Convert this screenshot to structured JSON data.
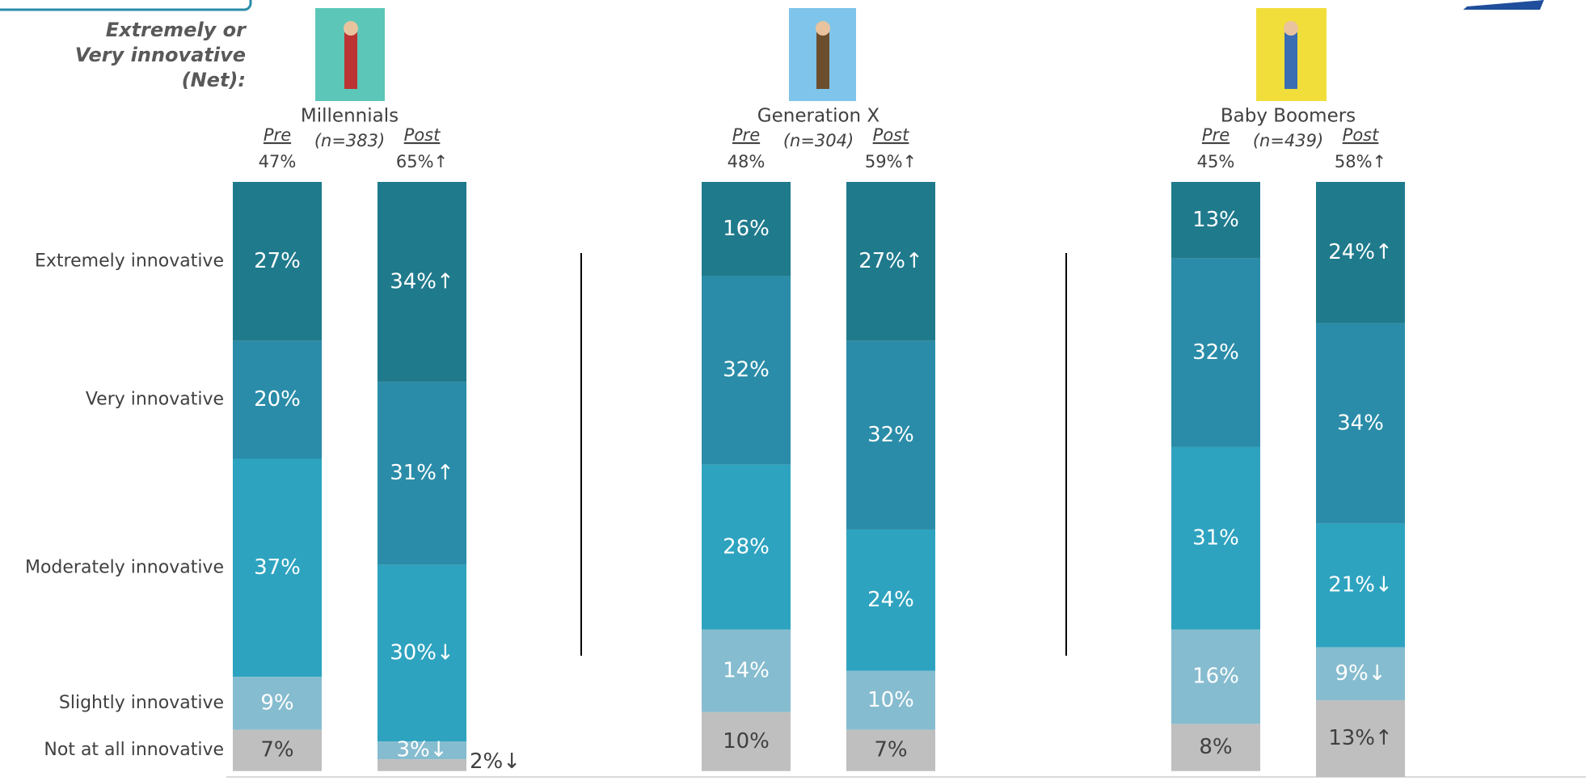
{
  "chart_data": {
    "type": "stacked_bar",
    "net_title": [
      "Extremely or",
      "Very innovative",
      "(Net):"
    ],
    "categories": [
      "Extremely innovative",
      "Very innovative",
      "Moderately innovative",
      "Slightly innovative",
      "Not at all innovative"
    ],
    "colors": [
      "#1f7a8c",
      "#2a8ca8",
      "#2ea3bf",
      "#86bccf",
      "#bfbfbf"
    ],
    "label_colors": [
      "#ffffff",
      "#ffffff",
      "#ffffff",
      "#ffffff",
      "#404040"
    ],
    "groups": [
      {
        "name": "Millennials",
        "n": "(n=383)",
        "bars": [
          {
            "label": "Pre",
            "net": 47,
            "net_label": "47%",
            "values": [
              27,
              20,
              37,
              9,
              7
            ],
            "value_labels": [
              "27%",
              "20%",
              "37%",
              "9%",
              "7%"
            ]
          },
          {
            "label": "Post",
            "net": 65,
            "net_label": "65%↑",
            "values": [
              34,
              31,
              30,
              3,
              2
            ],
            "value_labels": [
              "34%↑",
              "31%↑",
              "30%↓",
              "3%↓",
              "2%↓"
            ]
          }
        ]
      },
      {
        "name": "Generation X",
        "n": "(n=304)",
        "bars": [
          {
            "label": "Pre",
            "net": 48,
            "net_label": "48%",
            "values": [
              16,
              32,
              28,
              14,
              10
            ],
            "value_labels": [
              "16%",
              "32%",
              "28%",
              "14%",
              "10%"
            ]
          },
          {
            "label": "Post",
            "net": 59,
            "net_label": "59%↑",
            "values": [
              27,
              32,
              24,
              10,
              7
            ],
            "value_labels": [
              "27%↑",
              "32%",
              "24%",
              "10%",
              "7%"
            ]
          }
        ]
      },
      {
        "name": "Baby Boomers",
        "n": "(n=439)",
        "bars": [
          {
            "label": "Pre",
            "net": 45,
            "net_label": "45%",
            "values": [
              13,
              32,
              31,
              16,
              8
            ],
            "value_labels": [
              "13%",
              "32%",
              "31%",
              "16%",
              "8%"
            ]
          },
          {
            "label": "Post",
            "net": 58,
            "net_label": "58%↑",
            "values": [
              24,
              34,
              21,
              9,
              13
            ],
            "value_labels": [
              "24%↑",
              "34%",
              "21%↓",
              "9%↓",
              "13%↑"
            ]
          }
        ]
      }
    ]
  }
}
